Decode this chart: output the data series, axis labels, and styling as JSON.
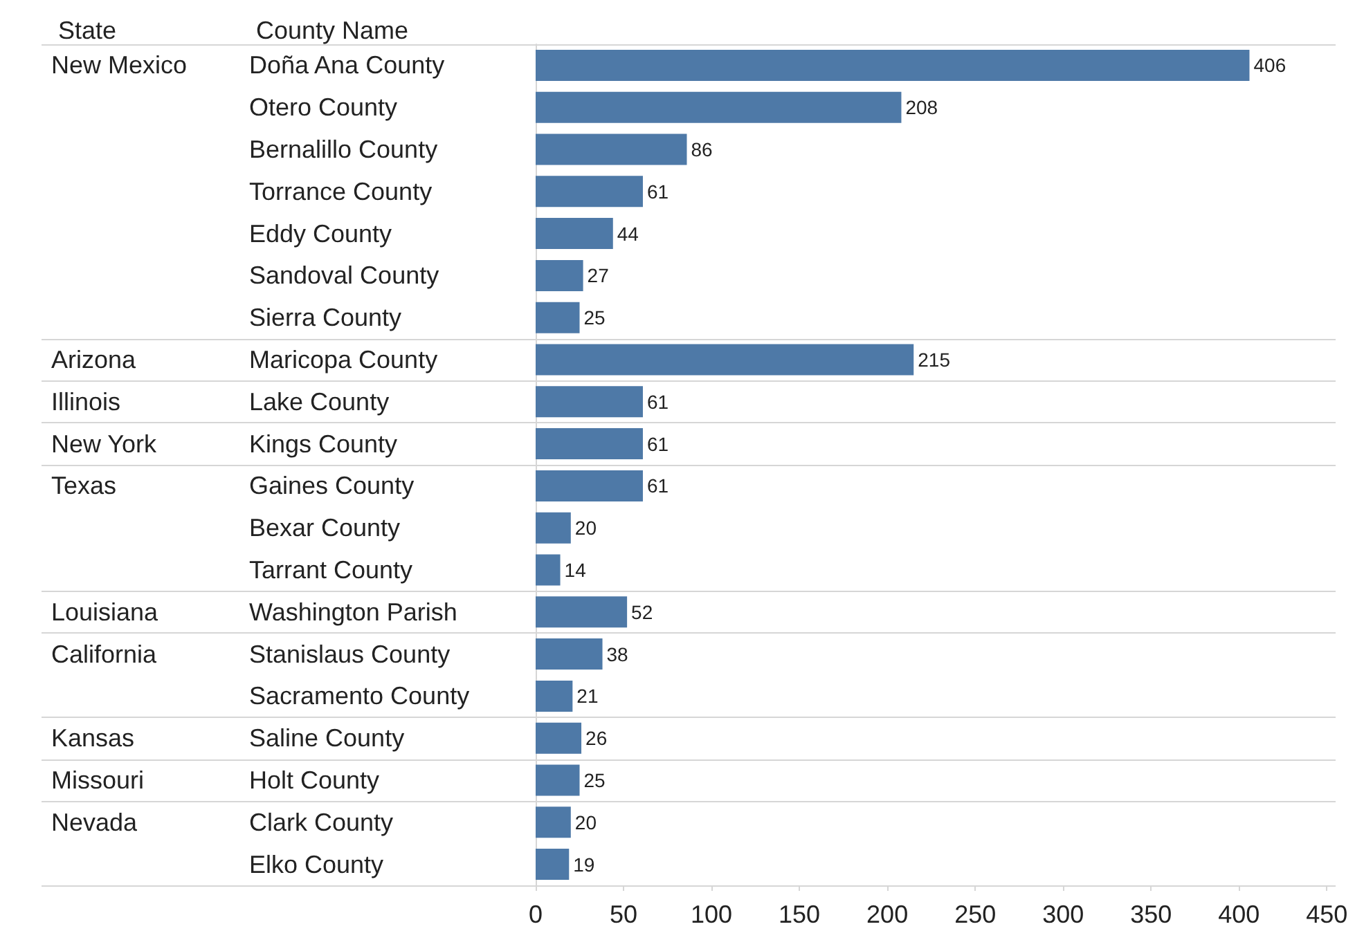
{
  "chart_data": {
    "type": "bar",
    "orientation": "horizontal",
    "ylabel": "County Name",
    "annotations": [
      "State"
    ],
    "categories": [
      "Doña Ana County",
      "Otero County",
      "Bernalillo County",
      "Torrance County",
      "Eddy County",
      "Sandoval County",
      "Sierra County",
      "Maricopa County",
      "Lake County",
      "Kings County",
      "Gaines County",
      "Bexar County",
      "Tarrant County",
      "Washington Parish",
      "Stanislaus County",
      "Sacramento County",
      "Saline County",
      "Holt County",
      "Clark County",
      "Elko County"
    ],
    "y2_categories": [
      "New Mexico",
      null,
      null,
      null,
      null,
      null,
      null,
      "Arizona",
      "Illinois",
      "New York",
      "Texas",
      null,
      null,
      "Louisiana",
      "California",
      null,
      "Kansas",
      "Missouri",
      "Nevada",
      null
    ],
    "values": [
      406,
      208,
      86,
      61,
      44,
      27,
      25,
      215,
      61,
      61,
      61,
      20,
      14,
      52,
      38,
      21,
      26,
      25,
      20,
      19
    ],
    "color": "#4e79a7",
    "xlim": [
      0,
      455
    ],
    "xticks": [
      0,
      50,
      100,
      150,
      200,
      250,
      300,
      350,
      400,
      450
    ],
    "data_labels": true
  }
}
